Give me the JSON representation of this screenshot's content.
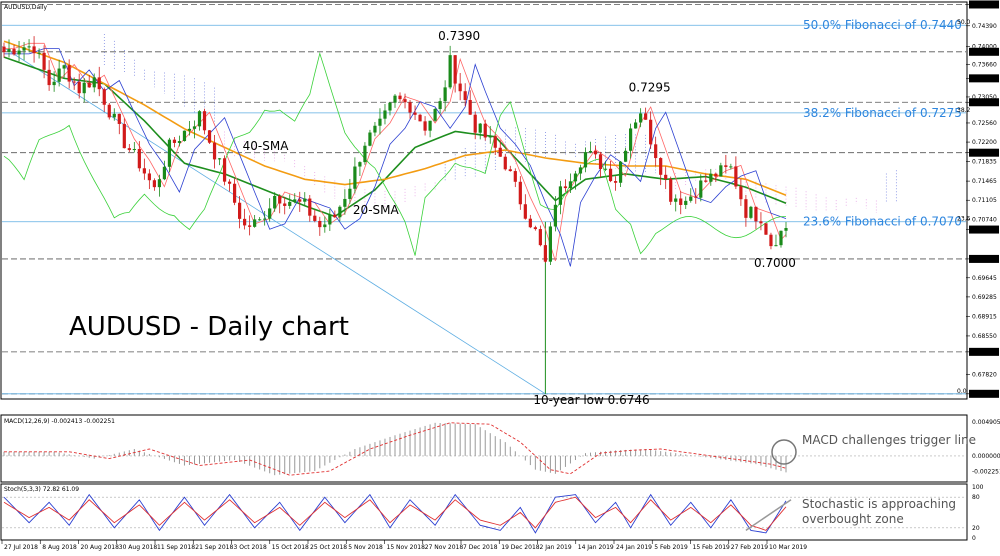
{
  "chart_data": [
    {
      "type": "candlestick",
      "header": "AUDUSD,Daily",
      "title": "AUDUSD - Daily chart",
      "price_ylim": [
        0.674,
        0.748
      ],
      "price_ticks": [
        "0.74791",
        "0.74390",
        "0.74000",
        "0.73660",
        "0.73400",
        "0.73050",
        "0.72950",
        "0.72560",
        "0.72200",
        "0.72000",
        "0.71835",
        "0.71465",
        "0.71105",
        "0.70740",
        "0.70550",
        "0.70000",
        "0.69645",
        "0.69285",
        "0.68915",
        "0.68550",
        "0.68250",
        "0.67820",
        "0.67460"
      ],
      "highlighted_ticks": [
        "0.74791",
        "0.73900",
        "0.73400",
        "0.72950",
        "0.72000",
        "0.70553",
        "0.70000",
        "0.68250",
        "0.67460"
      ],
      "date_labels": [
        "27 Jul 2018",
        "8 Aug 2018",
        "20 Aug 2018",
        "30 Aug 2018",
        "11 Sep 2018",
        "21 Sep 2018",
        "3 Oct 2018",
        "15 Oct 2018",
        "25 Oct 2018",
        "5 Nov 2018",
        "15 Nov 2018",
        "27 Nov 2018",
        "7 Dec 2018",
        "19 Dec 2018",
        "2 Jan 2019",
        "14 Jan 2019",
        "24 Jan 2019",
        "5 Feb 2019",
        "15 Feb 2019",
        "27 Feb 2019",
        "10 Mar 2019"
      ],
      "fibonacci": [
        {
          "label": "50.0% Fibonacci of 0.7440",
          "value": 0.744,
          "tag": "50.0"
        },
        {
          "label": "38.2% Fibonacci of 0.7275",
          "value": 0.7275,
          "tag": "38.2"
        },
        {
          "label": "23.6% Fibonacci of 0.7070",
          "value": 0.707,
          "tag": "23.6"
        },
        {
          "label": "",
          "value": 0.6746,
          "tag": "0.0"
        }
      ],
      "horizontal_levels": [
        0.7479,
        0.739,
        0.7295,
        0.72,
        0.7,
        0.6825,
        0.6746
      ],
      "annotations": [
        {
          "text": "0.7390",
          "date_index": 89,
          "price": 0.7412
        },
        {
          "text": "0.7295",
          "date_index": 127,
          "price": 0.7315
        },
        {
          "text": "0.7000",
          "date_index": 152,
          "price": 0.6985
        },
        {
          "text": "10-year low 0.6746",
          "date_index": 108,
          "price": 0.6727
        },
        {
          "text": "40-SMA",
          "date_index": 50,
          "price": 0.7205,
          "color": "#f39c12"
        },
        {
          "text": "20-SMA",
          "date_index": 72,
          "price": 0.7085,
          "color": "#1e8e1e"
        }
      ],
      "indicators": [
        "20-SMA",
        "40-SMA",
        "Ichimoku Cloud"
      ],
      "sma": {
        "20": {
          "color": "#1e8e1e",
          "anchors": [
            [
              0,
              0.738
            ],
            [
              12,
              0.734
            ],
            [
              20,
              0.733
            ],
            [
              28,
              0.726
            ],
            [
              36,
              0.718
            ],
            [
              44,
              0.716
            ],
            [
              52,
              0.713
            ],
            [
              60,
              0.71
            ],
            [
              66,
              0.708
            ],
            [
              74,
              0.713
            ],
            [
              82,
              0.721
            ],
            [
              90,
              0.724
            ],
            [
              98,
              0.723
            ],
            [
              104,
              0.717
            ],
            [
              110,
              0.711
            ],
            [
              116,
              0.715
            ],
            [
              124,
              0.716
            ],
            [
              132,
              0.715
            ],
            [
              140,
              0.7155
            ],
            [
              148,
              0.7135
            ],
            [
              156,
              0.7105
            ]
          ]
        },
        "40": {
          "color": "#f39c12",
          "anchors": [
            [
              0,
              0.741
            ],
            [
              12,
              0.737
            ],
            [
              20,
              0.733
            ],
            [
              28,
              0.729
            ],
            [
              36,
              0.7245
            ],
            [
              44,
              0.721
            ],
            [
              52,
              0.7175
            ],
            [
              60,
              0.715
            ],
            [
              68,
              0.714
            ],
            [
              76,
              0.715
            ],
            [
              84,
              0.717
            ],
            [
              92,
              0.7195
            ],
            [
              100,
              0.7205
            ],
            [
              108,
              0.719
            ],
            [
              116,
              0.718
            ],
            [
              124,
              0.7175
            ],
            [
              132,
              0.7175
            ],
            [
              140,
              0.716
            ],
            [
              148,
              0.715
            ],
            [
              156,
              0.712
            ]
          ]
        }
      },
      "candles": {
        "count": 157,
        "anchors": [
          [
            0,
            0.739
          ],
          [
            3,
            0.74
          ],
          [
            6,
            0.74
          ],
          [
            9,
            0.733
          ],
          [
            12,
            0.736
          ],
          [
            15,
            0.732
          ],
          [
            18,
            0.734
          ],
          [
            21,
            0.728
          ],
          [
            24,
            0.722
          ],
          [
            27,
            0.718
          ],
          [
            30,
            0.713
          ],
          [
            33,
            0.721
          ],
          [
            36,
            0.724
          ],
          [
            39,
            0.727
          ],
          [
            42,
            0.72
          ],
          [
            45,
            0.713
          ],
          [
            48,
            0.706
          ],
          [
            51,
            0.707
          ],
          [
            54,
            0.712
          ],
          [
            57,
            0.711
          ],
          [
            60,
            0.71
          ],
          [
            63,
            0.706
          ],
          [
            66,
            0.708
          ],
          [
            69,
            0.714
          ],
          [
            72,
            0.722
          ],
          [
            75,
            0.725
          ],
          [
            78,
            0.73
          ],
          [
            81,
            0.729
          ],
          [
            84,
            0.725
          ],
          [
            87,
            0.729
          ],
          [
            89,
            0.737
          ],
          [
            91,
            0.732
          ],
          [
            94,
            0.725
          ],
          [
            97,
            0.722
          ],
          [
            100,
            0.718
          ],
          [
            103,
            0.711
          ],
          [
            106,
            0.705
          ],
          [
            108,
            0.699
          ],
          [
            110,
            0.711
          ],
          [
            113,
            0.716
          ],
          [
            116,
            0.72
          ],
          [
            119,
            0.718
          ],
          [
            122,
            0.715
          ],
          [
            125,
            0.725
          ],
          [
            127,
            0.728
          ],
          [
            130,
            0.72
          ],
          [
            133,
            0.712
          ],
          [
            136,
            0.711
          ],
          [
            139,
            0.714
          ],
          [
            142,
            0.716
          ],
          [
            145,
            0.717
          ],
          [
            148,
            0.709
          ],
          [
            151,
            0.708
          ],
          [
            153,
            0.703
          ],
          [
            156,
            0.706
          ]
        ]
      },
      "ichimoku": {
        "tenkan_color": "#ff6666",
        "kijun_color": "#2b3fd1",
        "chikou_color": "#3ad13a",
        "bull_cloud_color": "#2b3fd1",
        "bear_cloud_color": "#d66bd6"
      }
    },
    {
      "type": "histogram",
      "header": "MACD(12,26,9) -0.002413 -0.002251",
      "ylim": [
        -0.0035,
        0.0055
      ],
      "ticks": [
        "0.004905",
        "0.000000",
        "-0.002251"
      ],
      "note": "MACD challenges trigger line",
      "anchors": [
        [
          0,
          0.0006
        ],
        [
          10,
          0.0006
        ],
        [
          18,
          -0.0004
        ],
        [
          26,
          0.001
        ],
        [
          36,
          -0.0014
        ],
        [
          46,
          -0.0006
        ],
        [
          54,
          -0.0028
        ],
        [
          62,
          -0.0022
        ],
        [
          70,
          0.001
        ],
        [
          78,
          0.003
        ],
        [
          86,
          0.0048
        ],
        [
          94,
          0.0046
        ],
        [
          100,
          0.002
        ],
        [
          106,
          -0.002
        ],
        [
          110,
          -0.0026
        ],
        [
          116,
          0.0004
        ],
        [
          122,
          0.0008
        ],
        [
          128,
          0.001
        ],
        [
          134,
          0.0004
        ],
        [
          142,
          -0.0004
        ],
        [
          150,
          -0.0012
        ],
        [
          156,
          -0.0024
        ]
      ],
      "signal_color": "#e03030",
      "bar_color": "#999999"
    },
    {
      "type": "line",
      "header": "Stoch(5,3,3) 72.82 61.09",
      "ylim": [
        0,
        100
      ],
      "ticks": [
        "100",
        "80",
        "20",
        "0"
      ],
      "reference_lines": [
        80,
        20
      ],
      "note": "Stochastic is approaching overbought zone",
      "series": [
        {
          "name": "72.82",
          "color": "#2b3fd1",
          "anchors": [
            [
              0,
              80
            ],
            [
              5,
              30
            ],
            [
              9,
              70
            ],
            [
              13,
              25
            ],
            [
              17,
              85
            ],
            [
              22,
              20
            ],
            [
              27,
              75
            ],
            [
              31,
              15
            ],
            [
              36,
              80
            ],
            [
              40,
              25
            ],
            [
              45,
              85
            ],
            [
              50,
              20
            ],
            [
              55,
              70
            ],
            [
              59,
              15
            ],
            [
              64,
              80
            ],
            [
              68,
              30
            ],
            [
              73,
              85
            ],
            [
              77,
              20
            ],
            [
              81,
              75
            ],
            [
              86,
              25
            ],
            [
              90,
              85
            ],
            [
              95,
              25
            ],
            [
              99,
              15
            ],
            [
              103,
              60
            ],
            [
              106,
              10
            ],
            [
              110,
              80
            ],
            [
              114,
              85
            ],
            [
              118,
              30
            ],
            [
              122,
              70
            ],
            [
              125,
              20
            ],
            [
              129,
              85
            ],
            [
              133,
              25
            ],
            [
              137,
              70
            ],
            [
              141,
              20
            ],
            [
              145,
              75
            ],
            [
              149,
              15
            ],
            [
              152,
              10
            ],
            [
              156,
              72.82
            ]
          ]
        },
        {
          "name": "61.09",
          "color": "#e03030",
          "anchors": [
            [
              0,
              70
            ],
            [
              5,
              40
            ],
            [
              9,
              60
            ],
            [
              13,
              35
            ],
            [
              17,
              75
            ],
            [
              22,
              30
            ],
            [
              27,
              65
            ],
            [
              31,
              25
            ],
            [
              36,
              70
            ],
            [
              40,
              35
            ],
            [
              45,
              75
            ],
            [
              50,
              30
            ],
            [
              55,
              60
            ],
            [
              59,
              25
            ],
            [
              64,
              70
            ],
            [
              68,
              40
            ],
            [
              73,
              75
            ],
            [
              77,
              30
            ],
            [
              81,
              65
            ],
            [
              86,
              35
            ],
            [
              90,
              75
            ],
            [
              95,
              35
            ],
            [
              99,
              25
            ],
            [
              103,
              50
            ],
            [
              106,
              20
            ],
            [
              110,
              70
            ],
            [
              114,
              80
            ],
            [
              118,
              40
            ],
            [
              122,
              60
            ],
            [
              125,
              30
            ],
            [
              129,
              75
            ],
            [
              133,
              35
            ],
            [
              137,
              60
            ],
            [
              141,
              30
            ],
            [
              145,
              65
            ],
            [
              149,
              25
            ],
            [
              152,
              15
            ],
            [
              156,
              61.09
            ]
          ]
        }
      ]
    }
  ]
}
